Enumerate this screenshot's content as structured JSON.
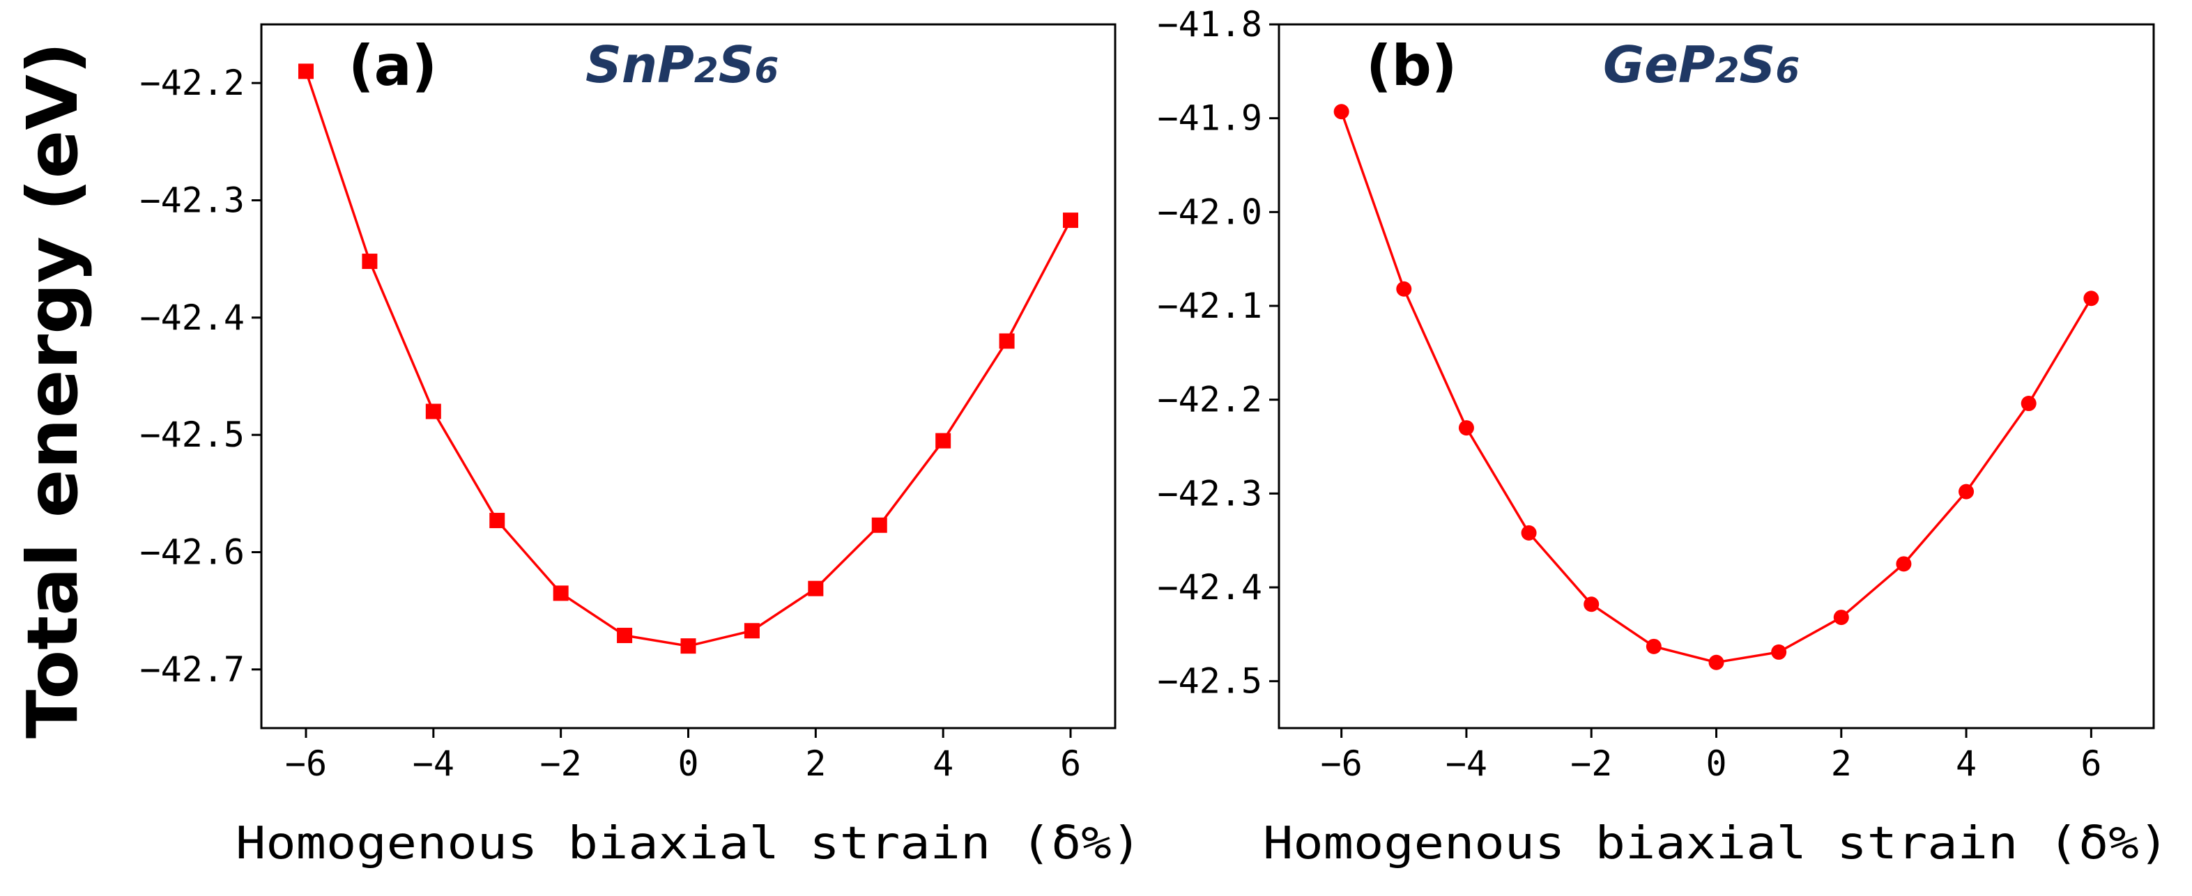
{
  "ylabel": "Total energy (eV)",
  "colors": {
    "series": "#ff0000",
    "axis": "#000000",
    "compound": "#1f3864"
  },
  "chart_data": [
    {
      "type": "line",
      "panel": "(a)",
      "compound": {
        "base1": "SnP",
        "sub1": "2",
        "base2": "S",
        "sub2": "6"
      },
      "xlabel": "Homogenous biaxial strain (δ%)",
      "xlim": [
        -6.7,
        6.7
      ],
      "ylim": [
        -42.75,
        -42.15
      ],
      "xticks": [
        -6,
        -4,
        -2,
        0,
        2,
        4,
        6
      ],
      "yticks": [
        -42.2,
        -42.3,
        -42.4,
        -42.5,
        -42.6,
        -42.7
      ],
      "xtick_labels": [
        "−6",
        "−4",
        "−2",
        "0",
        "2",
        "4",
        "6"
      ],
      "ytick_labels": [
        "−42.2",
        "−42.3",
        "−42.4",
        "−42.5",
        "−42.6",
        "−42.7"
      ],
      "marker": "square",
      "grid": false,
      "x": [
        -6,
        -5,
        -4,
        -3,
        -2,
        -1,
        0,
        1,
        2,
        3,
        4,
        5,
        6
      ],
      "y": [
        -42.19,
        -42.352,
        -42.48,
        -42.573,
        -42.635,
        -42.671,
        -42.68,
        -42.667,
        -42.631,
        -42.577,
        -42.505,
        -42.42,
        -42.317
      ]
    },
    {
      "type": "line",
      "panel": "(b)",
      "compound": {
        "base1": "GeP",
        "sub1": "2",
        "base2": "S",
        "sub2": "6"
      },
      "xlabel": "Homogenous biaxial strain (δ%)",
      "xlim": [
        -7.0,
        7.0
      ],
      "ylim": [
        -42.55,
        -41.8
      ],
      "xticks": [
        -6,
        -4,
        -2,
        0,
        2,
        4,
        6
      ],
      "yticks": [
        -41.8,
        -41.9,
        -42.0,
        -42.1,
        -42.2,
        -42.3,
        -42.4,
        -42.5
      ],
      "xtick_labels": [
        "−6",
        "−4",
        "−2",
        "0",
        "2",
        "4",
        "6"
      ],
      "ytick_labels": [
        "−41.8",
        "−41.9",
        "−42.0",
        "−42.1",
        "−42.2",
        "−42.3",
        "−42.4",
        "−42.5"
      ],
      "marker": "circle",
      "grid": false,
      "x": [
        -6,
        -5,
        -4,
        -3,
        -2,
        -1,
        0,
        1,
        2,
        3,
        4,
        5,
        6
      ],
      "y": [
        -41.893,
        -42.082,
        -42.23,
        -42.342,
        -42.418,
        -42.463,
        -42.48,
        -42.469,
        -42.432,
        -42.375,
        -42.298,
        -42.204,
        -42.092
      ]
    }
  ]
}
